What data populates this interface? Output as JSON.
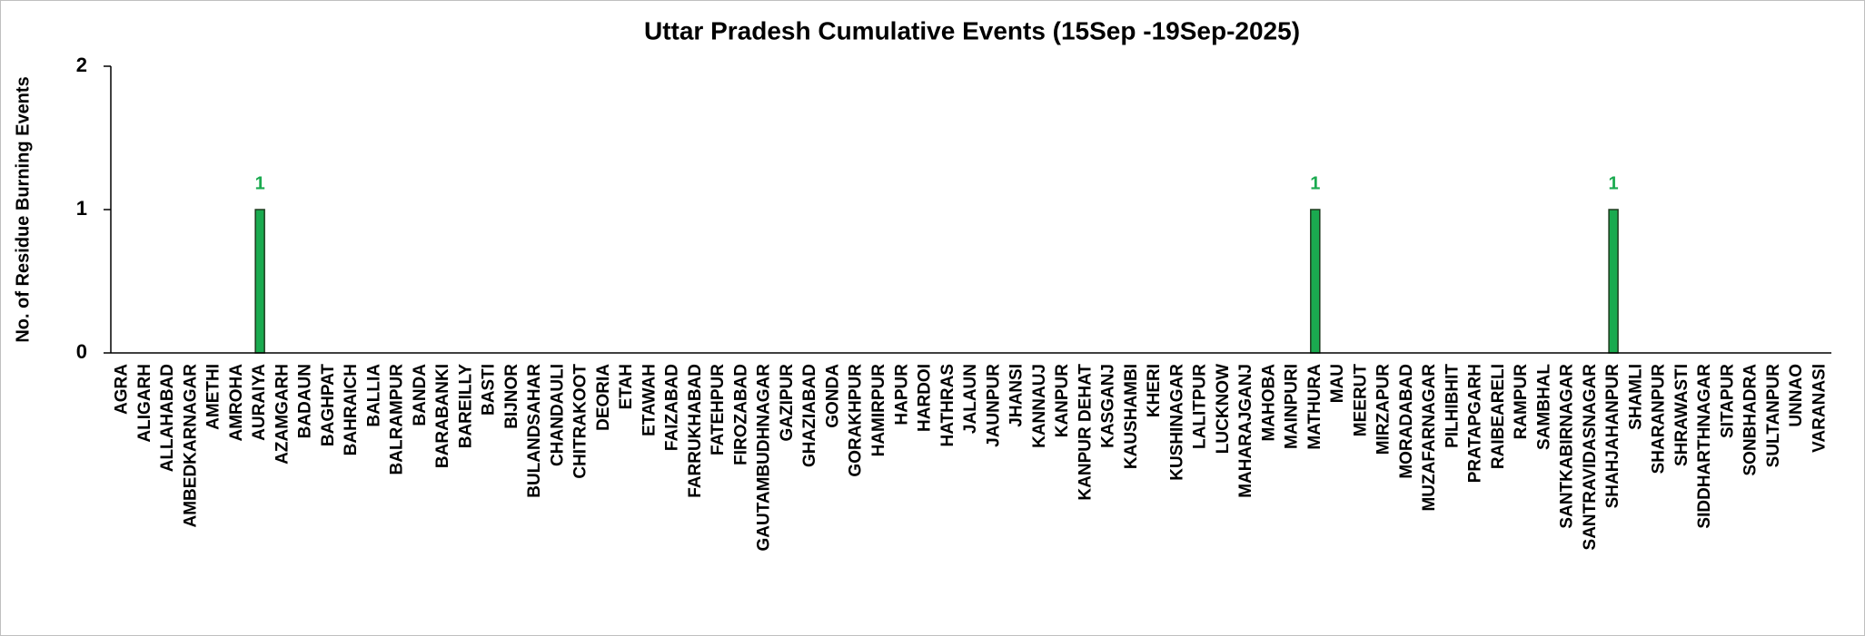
{
  "chart_data": {
    "type": "bar",
    "title": "Uttar Pradesh Cumulative Events (15Sep -19Sep-2025)",
    "y_label": "No. of Residue Burning Events",
    "categories": [
      "AGRA",
      "ALIGARH",
      "ALLAHABAD",
      "AMBEDKARNAGAR",
      "AMETHI",
      "AMROHA",
      "AURAIYA",
      "AZAMGARH",
      "BADAUN",
      "BAGHPAT",
      "BAHRAICH",
      "BALLIA",
      "BALRAMPUR",
      "BANDA",
      "BARABANKI",
      "BAREILLY",
      "BASTI",
      "BIJNOR",
      "BULANDSAHAR",
      "CHANDAULI",
      "CHITRAKOOT",
      "DEORIA",
      "ETAH",
      "ETAWAH",
      "FAIZABAD",
      "FARRUKHABAD",
      "FATEHPUR",
      "FIROZABAD",
      "GAUTAMBUDHNAGAR",
      "GAZIPUR",
      "GHAZIABAD",
      "GONDA",
      "GORAKHPUR",
      "HAMIRPUR",
      "HAPUR",
      "HARDOI",
      "HATHRAS",
      "JALAUN",
      "JAUNPUR",
      "JHANSI",
      "KANNAUJ",
      "KANPUR",
      "KANPUR DEHAT",
      "KASGANJ",
      "KAUSHAMBI",
      "KHERI",
      "KUSHINAGAR",
      "LALITPUR",
      "LUCKNOW",
      "MAHARAJGANJ",
      "MAHOBA",
      "MAINPURI",
      "MATHURA",
      "MAU",
      "MEERUT",
      "MIRZAPUR",
      "MORADABAD",
      "MUZAFARNAGAR",
      "PILHIBHIT",
      "PRATAPGARH",
      "RAIBEARELI",
      "RAMPUR",
      "SAMBHAL",
      "SANTKABIRNAGAR",
      "SANTRAVIDASNAGAR",
      "SHAHJAHANPUR",
      "SHAMLI",
      "SHARANPUR",
      "SHRAWASTI",
      "SIDDHARTHNAGAR",
      "SITAPUR",
      "SONBHADRA",
      "SULTANPUR",
      "UNNAO",
      "VARANASI"
    ],
    "values": [
      0,
      0,
      0,
      0,
      0,
      0,
      1,
      0,
      0,
      0,
      0,
      0,
      0,
      0,
      0,
      0,
      0,
      0,
      0,
      0,
      0,
      0,
      0,
      0,
      0,
      0,
      0,
      0,
      0,
      0,
      0,
      0,
      0,
      0,
      0,
      0,
      0,
      0,
      0,
      0,
      0,
      0,
      0,
      0,
      0,
      0,
      0,
      0,
      0,
      0,
      0,
      0,
      1,
      0,
      0,
      0,
      0,
      0,
      0,
      0,
      0,
      0,
      0,
      0,
      0,
      1,
      0,
      0,
      0,
      0,
      0,
      0,
      0,
      0,
      0
    ],
    "color": "#1aaa4f",
    "ylim": [
      0,
      2
    ],
    "yticks": [
      0,
      1,
      2
    ],
    "grid": false
  }
}
